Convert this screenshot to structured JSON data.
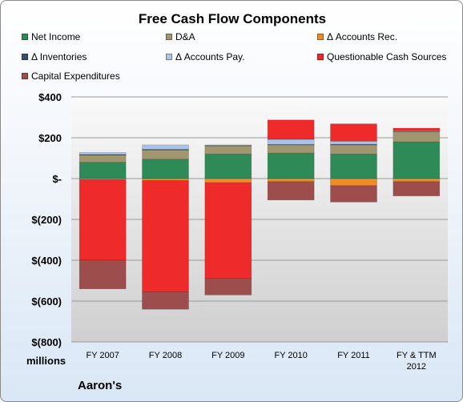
{
  "chart_data": {
    "type": "bar",
    "stacked": true,
    "title": "Free Cash Flow Components",
    "categories": [
      "FY 2007",
      "FY 2008",
      "FY 2009",
      "FY 2010",
      "FY 2011",
      "FY & TTM 2012"
    ],
    "units_label": "millions",
    "company_label": "Aaron's",
    "ylim": [
      -800,
      400
    ],
    "yticks": [
      400,
      200,
      0,
      -200,
      -400,
      -600,
      -800
    ],
    "ytick_labels": [
      "$400",
      "$200",
      "$-",
      "$(200)",
      "$(400)",
      "$(600)",
      "$(800)"
    ],
    "grid": true,
    "legend_position": "top",
    "series": [
      {
        "name": "Net Income",
        "color": "#2e8b57",
        "values": [
          80,
          95,
          120,
          125,
          120,
          180
        ]
      },
      {
        "name": "D&A",
        "color": "#a09670",
        "values": [
          35,
          45,
          40,
          40,
          45,
          50
        ]
      },
      {
        "name": "Δ Accounts Rec.",
        "color": "#f08a24",
        "values": [
          -5,
          -10,
          -20,
          -15,
          -35,
          -15
        ]
      },
      {
        "name": "Δ Inventories",
        "color": "#3b5068",
        "values": [
          3,
          3,
          2,
          2,
          3,
          2
        ]
      },
      {
        "name": "Δ Accounts Pay.",
        "color": "#a9c4e8",
        "values": [
          10,
          22,
          3,
          25,
          15,
          3
        ]
      },
      {
        "name": "Questionable Cash Sources",
        "color": "#ee2a2a",
        "values": [
          -395,
          -545,
          -470,
          95,
          85,
          12
        ]
      },
      {
        "name": "Capital Expenditures",
        "color": "#9e4d4d",
        "values": [
          -140,
          -85,
          -80,
          -90,
          -80,
          -70
        ]
      }
    ]
  }
}
